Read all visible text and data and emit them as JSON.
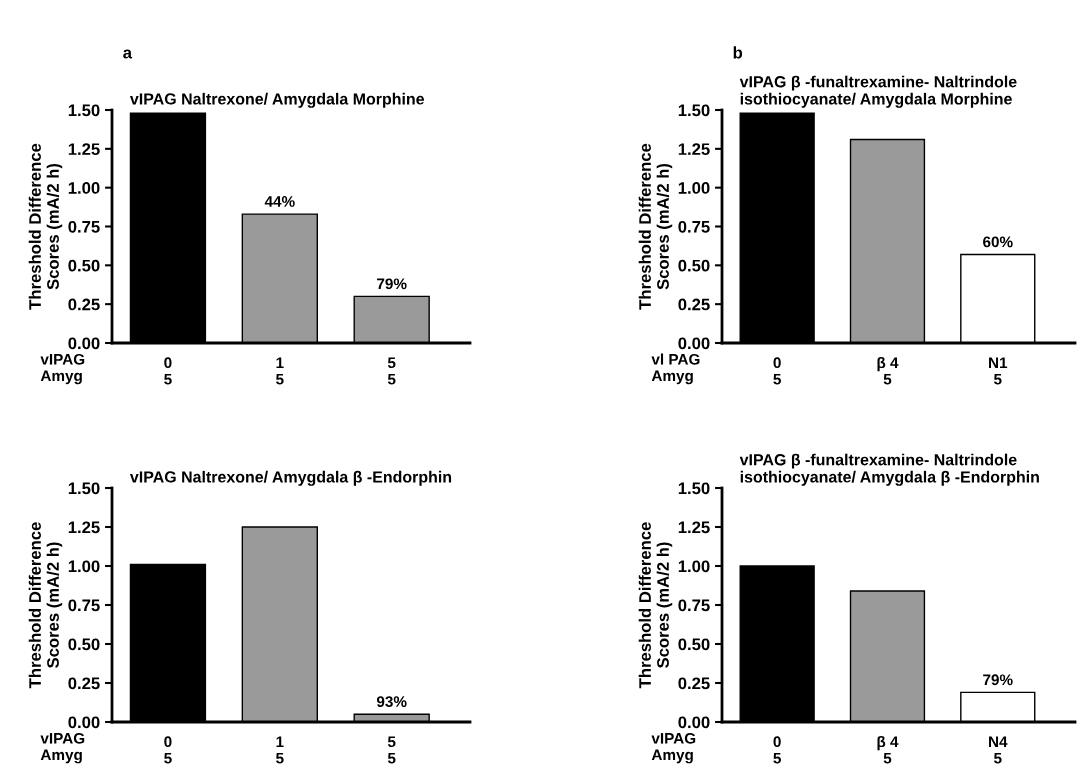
{
  "chart_data": [
    {
      "type": "bar",
      "title": "vIPAG Naltrexone/ Amygdala Morphine",
      "ylabel": "Threshold Difference\nScores (mA/2 h)",
      "categories": [
        "0\n5",
        "1\n5",
        "5\n5"
      ],
      "values": [
        1.48,
        0.83,
        0.3
      ],
      "colors": [
        "#000000",
        "#9a9a9a",
        "#9a9a9a"
      ],
      "ylim": [
        0,
        1.5
      ],
      "yticks": [
        {
          "value": 0,
          "label": "0.00"
        },
        {
          "value": 0.25,
          "label": "0.25"
        },
        {
          "value": 0.5,
          "label": "0.50"
        },
        {
          "value": 0.75,
          "label": "0.75"
        },
        {
          "value": 1.0,
          "label": "1.00"
        },
        {
          "value": 1.25,
          "label": "1.25"
        },
        {
          "value": 1.5,
          "label": "1.50"
        }
      ],
      "annotations": [
        "vIPAG\nAmyg",
        "a",
        {
          "text": "44%",
          "x": "1\n5",
          "y": 0.83
        },
        {
          "text": "79%",
          "x": "5\n5",
          "y": 0.3
        }
      ]
    },
    {
      "type": "bar",
      "title": "vIPAG β -funaltrexamine- Naltrindole\nisothiocyanate/ Amygdala Morphine",
      "ylabel": "Threshold Difference\nScores (mA/2 h)",
      "categories": [
        "0\n5",
        "β 4\n5",
        "N1\n5"
      ],
      "values": [
        1.48,
        1.31,
        0.57
      ],
      "colors": [
        "#000000",
        "#9a9a9a",
        "#ffffff"
      ],
      "ylim": [
        0,
        1.5
      ],
      "yticks": [
        {
          "value": 0,
          "label": "0.00"
        },
        {
          "value": 0.25,
          "label": "0.25"
        },
        {
          "value": 0.5,
          "label": "0.50"
        },
        {
          "value": 0.75,
          "label": "0.75"
        },
        {
          "value": 1.0,
          "label": "1.00"
        },
        {
          "value": 1.25,
          "label": "1.25"
        },
        {
          "value": 1.5,
          "label": "1.50"
        }
      ],
      "annotations": [
        "vl PAG\nAmyg",
        "b",
        {
          "text": "60%",
          "x": "N1\n5",
          "y": 0.57
        }
      ]
    },
    {
      "type": "bar",
      "title": "vIPAG Naltrexone/ Amygdala β -Endorphin",
      "ylabel": "Threshold Difference\nScores (mA/2 h)",
      "categories": [
        "0\n5",
        "1\n5",
        "5\n5"
      ],
      "values": [
        1.01,
        1.25,
        0.05
      ],
      "colors": [
        "#000000",
        "#9a9a9a",
        "#9a9a9a"
      ],
      "ylim": [
        0,
        1.5
      ],
      "yticks": [
        {
          "value": 0,
          "label": "0.00"
        },
        {
          "value": 0.25,
          "label": "0.25"
        },
        {
          "value": 0.5,
          "label": "0.50"
        },
        {
          "value": 0.75,
          "label": "0.75"
        },
        {
          "value": 1.0,
          "label": "1.00"
        },
        {
          "value": 1.25,
          "label": "1.25"
        },
        {
          "value": 1.5,
          "label": "1.50"
        }
      ],
      "annotations": [
        "vIPAG\nAmyg",
        {
          "text": "93%",
          "x": "5\n5",
          "y": 0.05
        }
      ]
    },
    {
      "type": "bar",
      "title": "vIPAG β -funaltrexamine- Naltrindole\nisothiocyanate/ Amygdala β -Endorphin",
      "ylabel": "Threshold Difference\nScores (mA/2 h)",
      "categories": [
        "0\n5",
        "β 4\n5",
        "N4\n5"
      ],
      "values": [
        1.0,
        0.84,
        0.19
      ],
      "colors": [
        "#000000",
        "#9a9a9a",
        "#ffffff"
      ],
      "ylim": [
        0,
        1.5
      ],
      "yticks": [
        {
          "value": 0,
          "label": "0.00"
        },
        {
          "value": 0.25,
          "label": "0.25"
        },
        {
          "value": 0.5,
          "label": "0.50"
        },
        {
          "value": 0.75,
          "label": "0.75"
        },
        {
          "value": 1.0,
          "label": "1.00"
        },
        {
          "value": 1.25,
          "label": "1.25"
        },
        {
          "value": 1.5,
          "label": "1.50"
        }
      ],
      "annotations": [
        "vIPAG\nAmyg",
        {
          "text": "79%",
          "x": "N4\n5",
          "y": 0.19
        }
      ]
    }
  ]
}
